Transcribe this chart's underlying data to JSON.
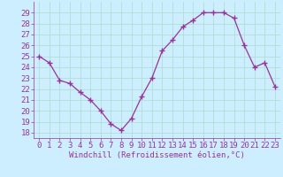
{
  "x": [
    0,
    1,
    2,
    3,
    4,
    5,
    6,
    7,
    8,
    9,
    10,
    11,
    12,
    13,
    14,
    15,
    16,
    17,
    18,
    19,
    20,
    21,
    22,
    23
  ],
  "y": [
    25.0,
    24.4,
    22.8,
    22.5,
    21.7,
    21.0,
    20.0,
    18.8,
    18.2,
    19.3,
    21.3,
    23.0,
    25.5,
    26.5,
    27.7,
    28.3,
    29.0,
    29.0,
    29.0,
    28.5,
    26.0,
    24.0,
    24.4,
    22.2
  ],
  "line_color": "#993399",
  "marker": "+",
  "marker_size": 4,
  "marker_lw": 1.0,
  "bg_color": "#cceeff",
  "grid_color": "#aaddcc",
  "xlabel": "Windchill (Refroidissement éolien,°C)",
  "xlabel_color": "#993399",
  "tick_fontsize": 6.5,
  "xlabel_fontsize": 6.5,
  "tick_label_color": "#993399",
  "ylim": [
    17.5,
    30.0
  ],
  "yticks": [
    18,
    19,
    20,
    21,
    22,
    23,
    24,
    25,
    26,
    27,
    28,
    29
  ],
  "xticks": [
    0,
    1,
    2,
    3,
    4,
    5,
    6,
    7,
    8,
    9,
    10,
    11,
    12,
    13,
    14,
    15,
    16,
    17,
    18,
    19,
    20,
    21,
    22,
    23
  ],
  "line_width": 0.9
}
